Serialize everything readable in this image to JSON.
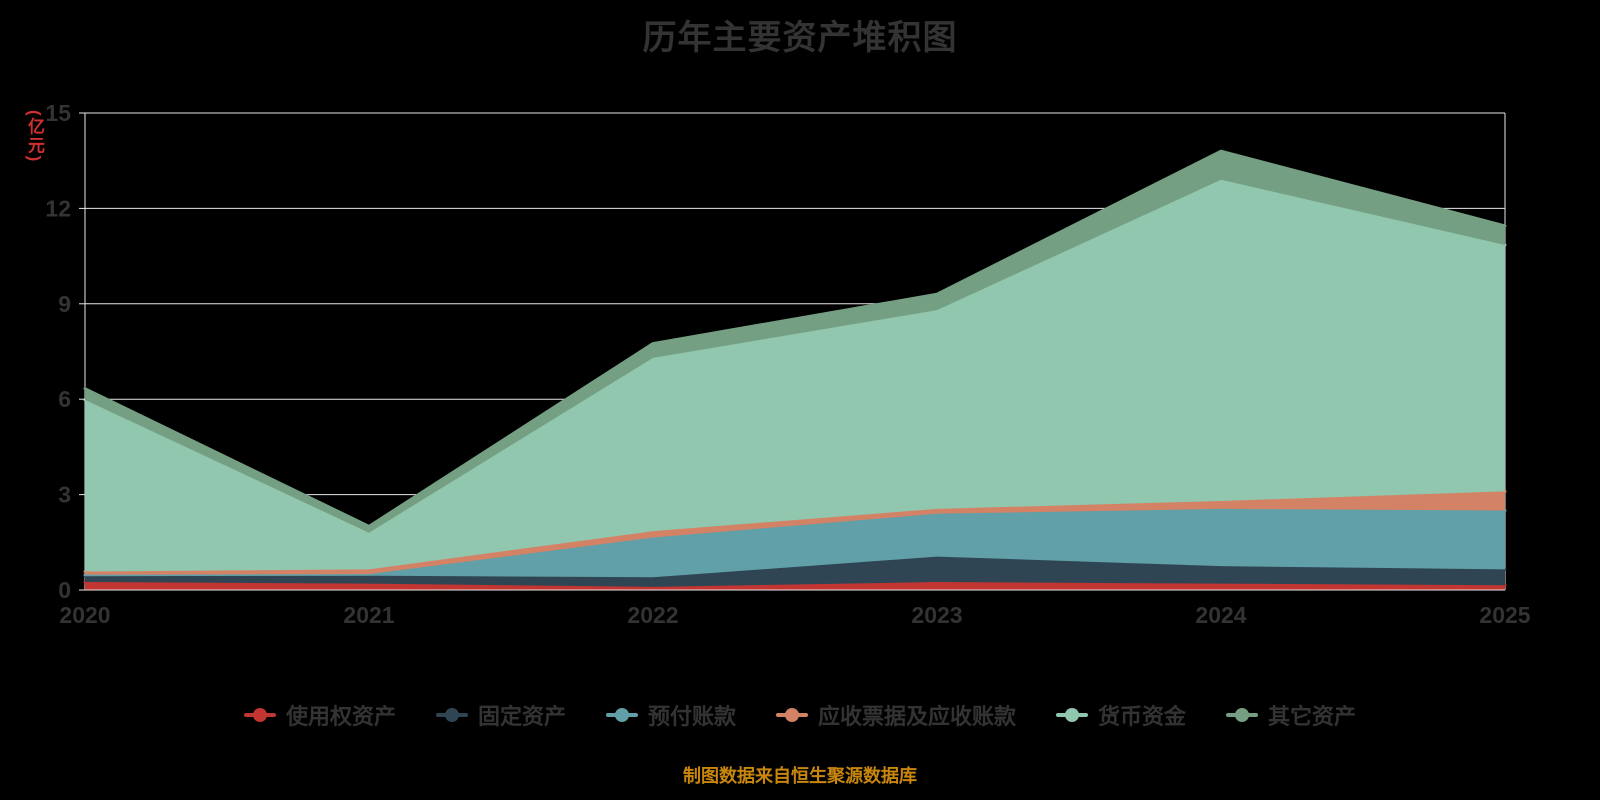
{
  "page": {
    "title": "历年主要资产堆积图",
    "y_axis_unit": "(亿元)",
    "source_note": "制图数据来自恒生聚源数据库"
  },
  "colors": {
    "background": "#000000",
    "title": "#333333",
    "axis_label": "#333333",
    "grid": "#e8e8e8",
    "unit_label": "#d03030",
    "source_note": "#c8860d"
  },
  "chart_data": {
    "type": "area",
    "stacked": true,
    "title": "历年主要资产堆积图",
    "x": [
      "2020",
      "2021",
      "2022",
      "2023",
      "2024",
      "2025"
    ],
    "xlabel": "",
    "ylabel": "(亿元)",
    "ylim": [
      0,
      15
    ],
    "yticks": [
      0,
      3,
      6,
      9,
      12,
      15
    ],
    "grid": true,
    "legend_position": "bottom",
    "series": [
      {
        "name": "使用权资产",
        "slug": "right-of-use-assets",
        "color": "#c23531",
        "values": [
          0.25,
          0.2,
          0.1,
          0.25,
          0.2,
          0.15
        ]
      },
      {
        "name": "固定资产",
        "slug": "fixed-assets",
        "color": "#2f4554",
        "values": [
          0.2,
          0.25,
          0.3,
          0.8,
          0.55,
          0.5
        ]
      },
      {
        "name": "预付账款",
        "slug": "prepayments",
        "color": "#61a0a8",
        "values": [
          0.03,
          0.05,
          1.25,
          1.35,
          1.8,
          1.85
        ]
      },
      {
        "name": "应收票据及应收账款",
        "slug": "notes-and-accounts-receivable",
        "color": "#d48265",
        "values": [
          0.1,
          0.15,
          0.2,
          0.15,
          0.25,
          0.6
        ]
      },
      {
        "name": "货币资金",
        "slug": "monetary-funds",
        "color": "#91c7ae",
        "values": [
          5.4,
          1.15,
          5.45,
          6.25,
          10.1,
          7.75
        ]
      },
      {
        "name": "其它资产",
        "slug": "other-assets",
        "color": "#749f83",
        "values": [
          0.35,
          0.2,
          0.45,
          0.5,
          0.9,
          0.6
        ]
      }
    ],
    "totals_by_year": [
      6.33,
      2.0,
      7.75,
      9.3,
      13.8,
      11.45
    ]
  }
}
